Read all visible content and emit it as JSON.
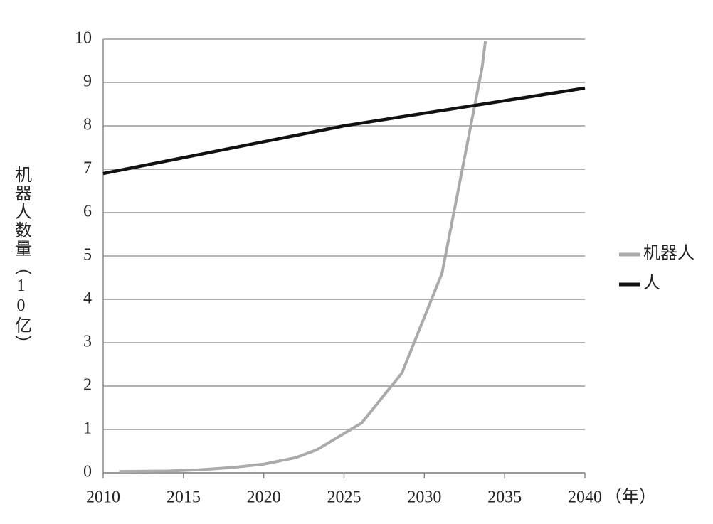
{
  "chart_data": {
    "type": "line",
    "ylabel": "机器人数量（10亿）",
    "xlabel": "（年）",
    "xlim": [
      2010,
      2040
    ],
    "xticks": [
      2010,
      2015,
      2020,
      2025,
      2030,
      2035,
      2040
    ],
    "ylim": [
      0,
      10
    ],
    "yticks": [
      0,
      1,
      2,
      3,
      4,
      5,
      6,
      7,
      8,
      9,
      10
    ],
    "grid": true,
    "legend": "right",
    "series": [
      {
        "name": "机器人",
        "color": "#aaaaaa",
        "x": [
          2011,
          2014,
          2016,
          2018,
          2020,
          2022,
          2023.3,
          2026.1,
          2028.6,
          2031.1,
          2033.6,
          2033.8
        ],
        "values": [
          0.03,
          0.04,
          0.07,
          0.12,
          0.2,
          0.35,
          0.53,
          1.15,
          2.3,
          4.6,
          9.35,
          9.95
        ]
      },
      {
        "name": "人",
        "color": "#111111",
        "x": [
          2010,
          2025,
          2040
        ],
        "values": [
          6.9,
          8.0,
          8.87
        ]
      }
    ]
  }
}
